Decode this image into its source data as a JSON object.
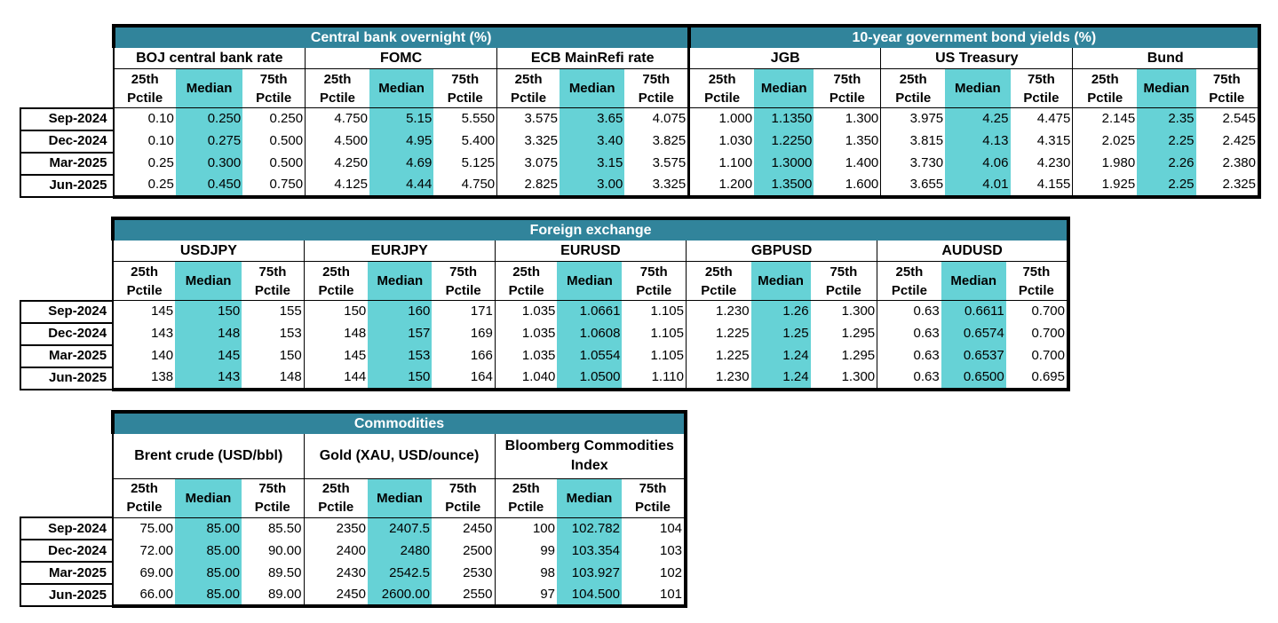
{
  "rows": [
    "Sep-2024",
    "Dec-2024",
    "Mar-2025",
    "Jun-2025"
  ],
  "sub_headers": {
    "p25": "25th Pctile",
    "median": "Median",
    "p75": "75th Pctile"
  },
  "colors": {
    "title_bg": "#31849b",
    "median_bg": "#66d2d6",
    "title_text": "#ffffff"
  },
  "rates": {
    "left_title": "Central bank overnight (%)",
    "right_title": "10-year government bond yields (%)",
    "groups": [
      {
        "name": "BOJ central bank rate",
        "values": [
          [
            "0.10",
            "0.250",
            "0.250"
          ],
          [
            "0.10",
            "0.275",
            "0.500"
          ],
          [
            "0.25",
            "0.300",
            "0.500"
          ],
          [
            "0.25",
            "0.450",
            "0.750"
          ]
        ]
      },
      {
        "name": "FOMC",
        "values": [
          [
            "4.750",
            "5.15",
            "5.550"
          ],
          [
            "4.500",
            "4.95",
            "5.400"
          ],
          [
            "4.250",
            "4.69",
            "5.125"
          ],
          [
            "4.125",
            "4.44",
            "4.750"
          ]
        ]
      },
      {
        "name": "ECB MainRefi rate",
        "values": [
          [
            "3.575",
            "3.65",
            "4.075"
          ],
          [
            "3.325",
            "3.40",
            "3.825"
          ],
          [
            "3.075",
            "3.15",
            "3.575"
          ],
          [
            "2.825",
            "3.00",
            "3.325"
          ]
        ]
      },
      {
        "name": "JGB",
        "values": [
          [
            "1.000",
            "1.1350",
            "1.300"
          ],
          [
            "1.030",
            "1.2250",
            "1.350"
          ],
          [
            "1.100",
            "1.3000",
            "1.400"
          ],
          [
            "1.200",
            "1.3500",
            "1.600"
          ]
        ]
      },
      {
        "name": "US Treasury",
        "values": [
          [
            "3.975",
            "4.25",
            "4.475"
          ],
          [
            "3.815",
            "4.13",
            "4.315"
          ],
          [
            "3.730",
            "4.06",
            "4.230"
          ],
          [
            "3.655",
            "4.01",
            "4.155"
          ]
        ]
      },
      {
        "name": "Bund",
        "values": [
          [
            "2.145",
            "2.35",
            "2.545"
          ],
          [
            "2.025",
            "2.25",
            "2.425"
          ],
          [
            "1.980",
            "2.26",
            "2.380"
          ],
          [
            "1.925",
            "2.25",
            "2.325"
          ]
        ]
      }
    ]
  },
  "fx": {
    "title": "Foreign exchange",
    "groups": [
      {
        "name": "USDJPY",
        "values": [
          [
            "145",
            "150",
            "155"
          ],
          [
            "143",
            "148",
            "153"
          ],
          [
            "140",
            "145",
            "150"
          ],
          [
            "138",
            "143",
            "148"
          ]
        ]
      },
      {
        "name": "EURJPY",
        "values": [
          [
            "150",
            "160",
            "171"
          ],
          [
            "148",
            "157",
            "169"
          ],
          [
            "145",
            "153",
            "166"
          ],
          [
            "144",
            "150",
            "164"
          ]
        ]
      },
      {
        "name": "EURUSD",
        "values": [
          [
            "1.035",
            "1.0661",
            "1.105"
          ],
          [
            "1.035",
            "1.0608",
            "1.105"
          ],
          [
            "1.035",
            "1.0554",
            "1.105"
          ],
          [
            "1.040",
            "1.0500",
            "1.110"
          ]
        ]
      },
      {
        "name": "GBPUSD",
        "values": [
          [
            "1.230",
            "1.26",
            "1.300"
          ],
          [
            "1.225",
            "1.25",
            "1.295"
          ],
          [
            "1.225",
            "1.24",
            "1.295"
          ],
          [
            "1.230",
            "1.24",
            "1.300"
          ]
        ]
      },
      {
        "name": "AUDUSD",
        "values": [
          [
            "0.63",
            "0.6611",
            "0.700"
          ],
          [
            "0.63",
            "0.6574",
            "0.700"
          ],
          [
            "0.63",
            "0.6537",
            "0.700"
          ],
          [
            "0.63",
            "0.6500",
            "0.695"
          ]
        ]
      }
    ]
  },
  "commodities": {
    "title": "Commodities",
    "groups": [
      {
        "name": "Brent crude (USD/bbl)",
        "values": [
          [
            "75.00",
            "85.00",
            "85.50"
          ],
          [
            "72.00",
            "85.00",
            "90.00"
          ],
          [
            "69.00",
            "85.00",
            "89.50"
          ],
          [
            "66.00",
            "85.00",
            "89.00"
          ]
        ]
      },
      {
        "name": "Gold (XAU, USD/ounce)",
        "values": [
          [
            "2350",
            "2407.5",
            "2450"
          ],
          [
            "2400",
            "2480",
            "2500"
          ],
          [
            "2430",
            "2542.5",
            "2530"
          ],
          [
            "2450",
            "2600.00",
            "2550"
          ]
        ]
      },
      {
        "name": "Bloomberg Commodities Index",
        "values": [
          [
            "100",
            "102.782",
            "104"
          ],
          [
            "99",
            "103.354",
            "103"
          ],
          [
            "98",
            "103.927",
            "102"
          ],
          [
            "97",
            "104.500",
            "101"
          ]
        ]
      }
    ]
  }
}
